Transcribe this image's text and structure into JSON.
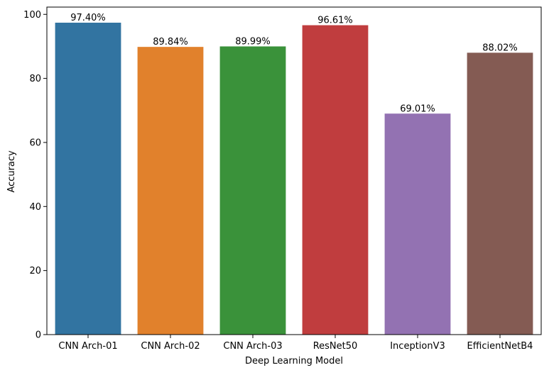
{
  "chart_data": {
    "type": "bar",
    "title": "",
    "xlabel": "Deep Learning Model",
    "ylabel": "Accuracy",
    "categories": [
      "CNN Arch-01",
      "CNN Arch-02",
      "CNN Arch-03",
      "ResNet50",
      "InceptionV3",
      "EfficientNetB4"
    ],
    "values": [
      97.4,
      89.84,
      89.99,
      96.61,
      69.01,
      88.02
    ],
    "data_labels": [
      "97.40%",
      "89.84%",
      "89.99%",
      "96.61%",
      "69.01%",
      "88.02%"
    ],
    "colors": [
      "#3274a1",
      "#e1812c",
      "#3a923a",
      "#c03d3e",
      "#9372b2",
      "#845b53"
    ],
    "ylim": [
      0,
      102.27
    ],
    "yticks": [
      0,
      20,
      40,
      60,
      80,
      100
    ],
    "grid": false,
    "legend": "none"
  }
}
